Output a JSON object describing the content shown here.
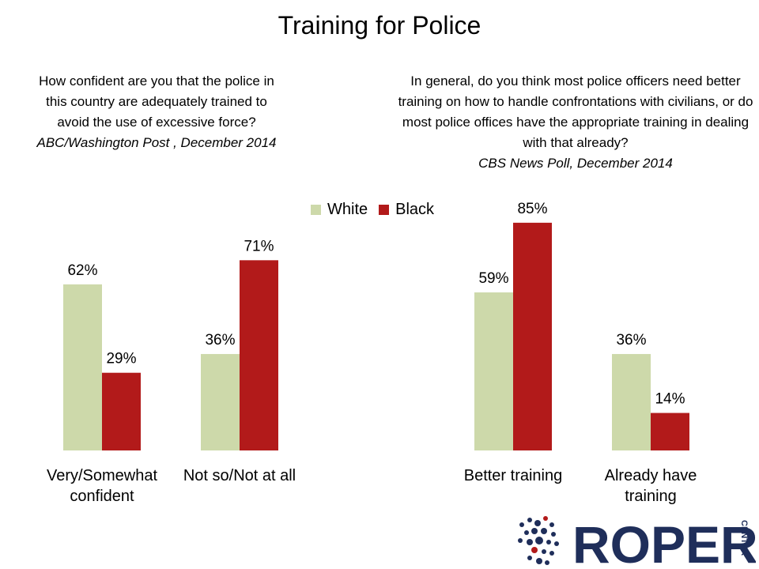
{
  "title": "Training for Police",
  "legend": [
    {
      "label": "White",
      "color": "#cdd9aa"
    },
    {
      "label": "Black",
      "color": "#b21a1a"
    }
  ],
  "left_panel": {
    "question": "How confident are you that the police in this country are adequately trained to avoid the use of excessive force?",
    "source": "ABC/Washington Post , December 2014"
  },
  "right_panel": {
    "question": "In general, do you think most police officers need better training on how to handle confrontations with civilians, or do most police offices have the appropriate training in dealing with that already?",
    "source": "CBS News Poll, December 2014"
  },
  "chart_data": [
    {
      "type": "bar",
      "categories": [
        [
          "Very/Somewhat",
          "confident"
        ],
        [
          "Not so/Not at all"
        ]
      ],
      "series": [
        {
          "name": "White",
          "values": [
            62,
            36
          ],
          "color": "#cdd9aa"
        },
        {
          "name": "Black",
          "values": [
            29,
            71
          ],
          "color": "#b21a1a"
        }
      ],
      "unit": "%",
      "ylim": [
        0,
        100
      ],
      "grid": false
    },
    {
      "type": "bar",
      "categories": [
        [
          "Better training"
        ],
        [
          "Already have",
          "training"
        ]
      ],
      "series": [
        {
          "name": "White",
          "values": [
            59,
            36
          ],
          "color": "#cdd9aa"
        },
        {
          "name": "Black",
          "values": [
            85,
            14
          ],
          "color": "#b21a1a"
        }
      ],
      "unit": "%",
      "ylim": [
        0,
        100
      ],
      "grid": false
    }
  ],
  "logo": {
    "text": "ROPER",
    "subtext": "CENTER",
    "color": "#1f2e5a",
    "dot_color": "#1f2e5a",
    "dot_accent": "#b21a1a"
  }
}
